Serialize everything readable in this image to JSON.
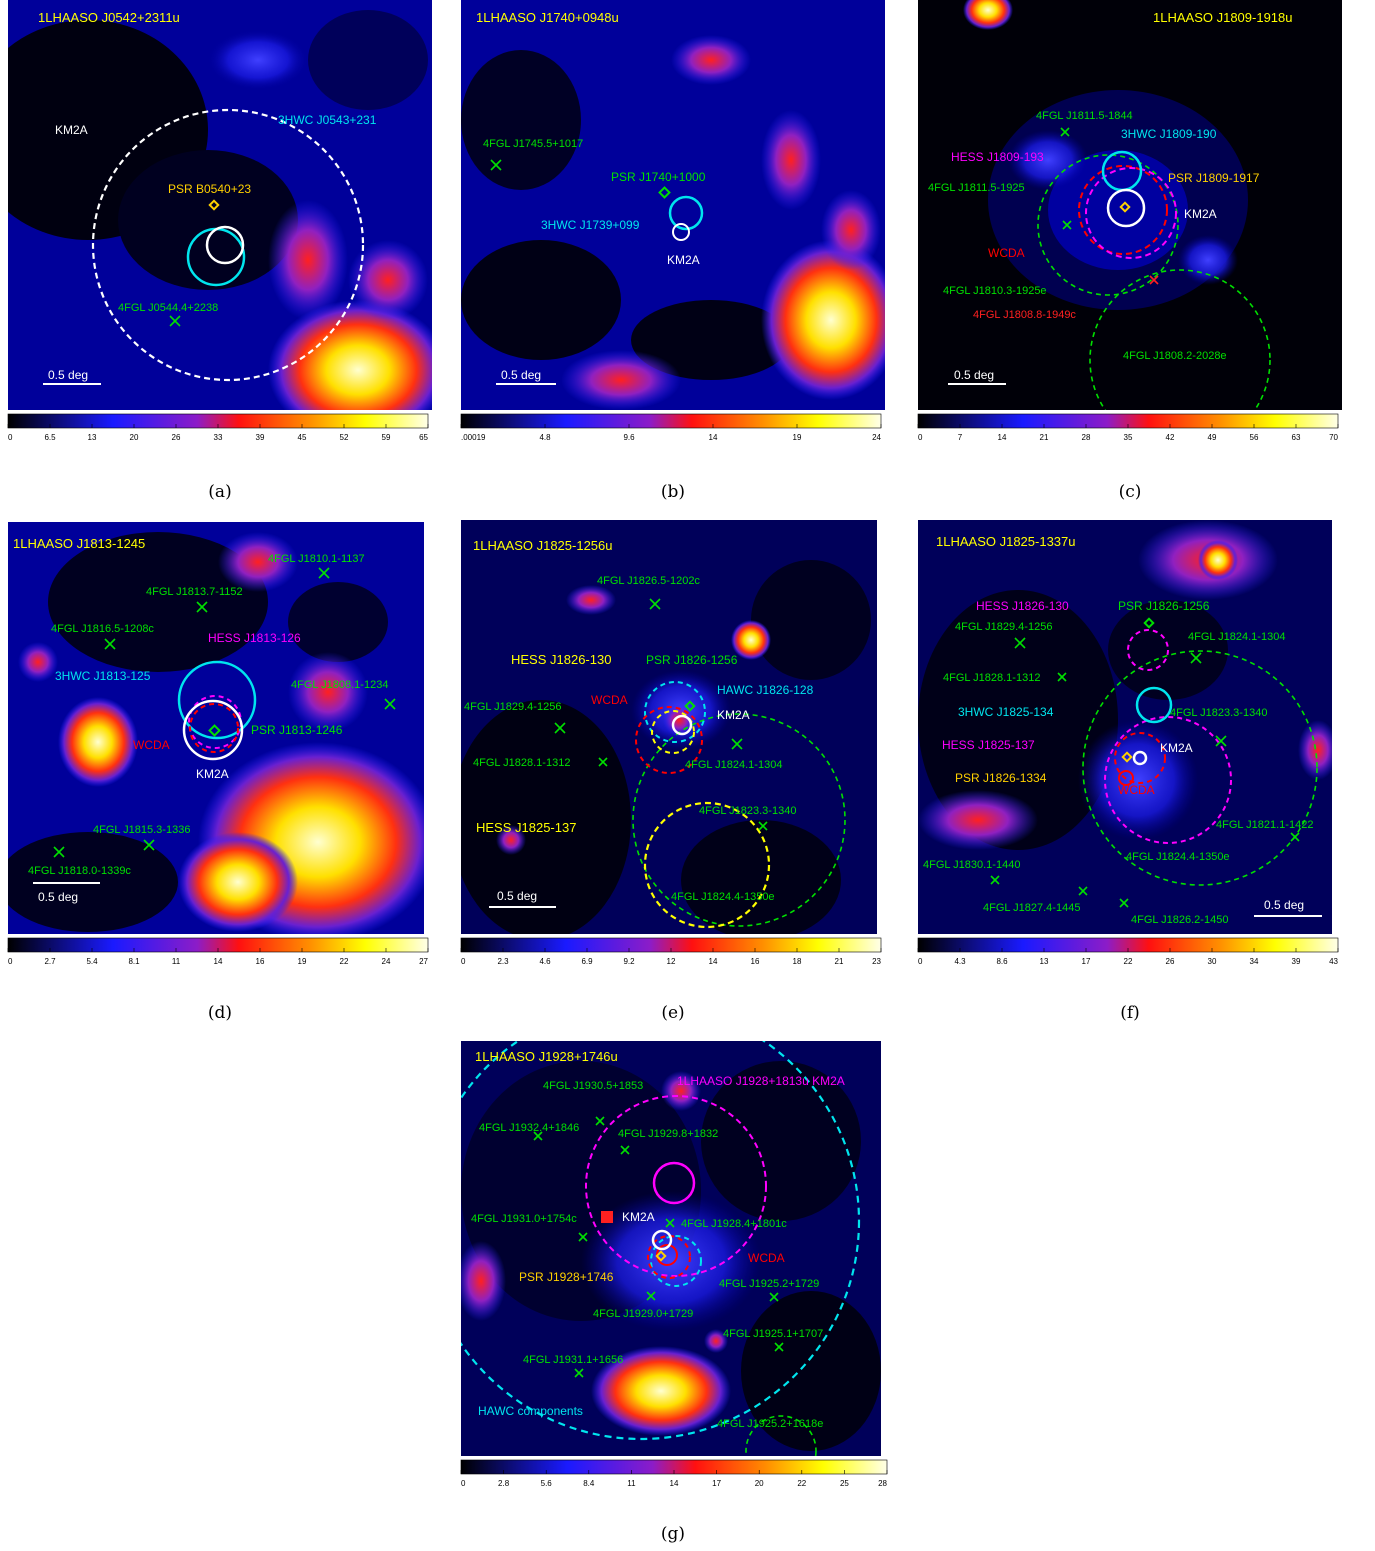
{
  "colors": {
    "sky": "#000000",
    "tevcat": "#ffff00",
    "fermi": "#00e000",
    "fermi_red": "#ff2020",
    "hawc": "#00e5ee",
    "hess": "#ff00ff",
    "wcda": "#ff0000",
    "km2a": "#ffffff",
    "pulsar": "#ffd000"
  },
  "panels": [
    {
      "key": "a",
      "caption": "(a)",
      "title": "1LHAASO J0542+2311u",
      "scale": "0.5 deg",
      "cbar_ticks": [
        "0",
        "6.5",
        "13",
        "20",
        "26",
        "33",
        "39",
        "45",
        "52",
        "59",
        "65"
      ],
      "labels": [
        {
          "text": "3HWC J0543+231",
          "color": "hawc"
        },
        {
          "text": "KM2A",
          "color": "km2a"
        },
        {
          "text": "PSR B0540+23",
          "color": "pulsar"
        },
        {
          "text": "4FGL J0544.4+2238",
          "color": "fermi"
        }
      ]
    },
    {
      "key": "b",
      "caption": "(b)",
      "title": "1LHAASO J1740+0948u",
      "scale": "0.5 deg",
      "cbar_ticks": [
        ".00019",
        "4.8",
        "9.6",
        "14",
        "19",
        "24"
      ],
      "labels": [
        {
          "text": "4FGL J1745.5+1017",
          "color": "fermi"
        },
        {
          "text": "PSR J1740+1000",
          "color": "fermi"
        },
        {
          "text": "3HWC J1739+099",
          "color": "hawc"
        },
        {
          "text": "KM2A",
          "color": "km2a"
        }
      ]
    },
    {
      "key": "c",
      "caption": "(c)",
      "title": "1LHAASO J1809-1918u",
      "scale": "0.5 deg",
      "cbar_ticks": [
        "0",
        "7",
        "14",
        "21",
        "28",
        "35",
        "42",
        "49",
        "56",
        "63",
        "70"
      ],
      "labels": [
        {
          "text": "4FGL J1811.5-1844",
          "color": "fermi"
        },
        {
          "text": "3HWC J1809-190",
          "color": "hawc"
        },
        {
          "text": "HESS J1809-193",
          "color": "hess"
        },
        {
          "text": "4FGL J1811.5-1925",
          "color": "fermi"
        },
        {
          "text": "PSR J1809-1917",
          "color": "pulsar"
        },
        {
          "text": "KM2A",
          "color": "km2a"
        },
        {
          "text": "WCDA",
          "color": "wcda"
        },
        {
          "text": "4FGL J1810.3-1925e",
          "color": "fermi"
        },
        {
          "text": "4FGL J1808.8-1949c",
          "color": "fermi_red"
        },
        {
          "text": "4FGL J1808.2-2028e",
          "color": "fermi"
        }
      ]
    },
    {
      "key": "d",
      "caption": "(d)",
      "title": "1LHAASO J1813-1245",
      "scale": "0.5 deg",
      "cbar_ticks": [
        "0",
        "2.7",
        "5.4",
        "8.1",
        "11",
        "14",
        "16",
        "19",
        "22",
        "24",
        "27"
      ],
      "labels": [
        {
          "text": "4FGL J1810.1-1137",
          "color": "fermi"
        },
        {
          "text": "4FGL J1813.7-1152",
          "color": "fermi"
        },
        {
          "text": "4FGL J1816.5-1208c",
          "color": "fermi"
        },
        {
          "text": "HESS J1813-126",
          "color": "hess"
        },
        {
          "text": "4FGL J1808.1-1234",
          "color": "fermi"
        },
        {
          "text": "3HWC J1813-125",
          "color": "hawc"
        },
        {
          "text": "PSR J1813-1246",
          "color": "fermi"
        },
        {
          "text": "WCDA",
          "color": "wcda"
        },
        {
          "text": "KM2A",
          "color": "km2a"
        },
        {
          "text": "4FGL J1815.3-1336",
          "color": "fermi"
        },
        {
          "text": "4FGL J1818.0-1339c",
          "color": "fermi"
        }
      ]
    },
    {
      "key": "e",
      "caption": "(e)",
      "title": "1LHAASO J1825-1256u",
      "scale": "0.5 deg",
      "cbar_ticks": [
        "0",
        "2.3",
        "4.6",
        "6.9",
        "9.2",
        "12",
        "14",
        "16",
        "18",
        "21",
        "23"
      ],
      "labels": [
        {
          "text": "4FGL J1826.5-1202c",
          "color": "fermi"
        },
        {
          "text": "HESS J1826-130",
          "color": "tevcat"
        },
        {
          "text": "PSR J1826-1256",
          "color": "fermi"
        },
        {
          "text": "WCDA",
          "color": "wcda"
        },
        {
          "text": "HAWC J1826-128",
          "color": "hawc"
        },
        {
          "text": "4FGL J1829.4-1256",
          "color": "fermi"
        },
        {
          "text": "KM2A",
          "color": "km2a"
        },
        {
          "text": "4FGL J1828.1-1312",
          "color": "fermi"
        },
        {
          "text": "4FGL J1824.1-1304",
          "color": "fermi"
        },
        {
          "text": "4FGL J1823.3-1340",
          "color": "fermi"
        },
        {
          "text": "HESS J1825-137",
          "color": "tevcat"
        },
        {
          "text": "4FGL J1824.4-1350e",
          "color": "fermi"
        }
      ]
    },
    {
      "key": "f",
      "caption": "(f)",
      "title": "1LHAASO J1825-1337u",
      "scale": "0.5 deg",
      "cbar_ticks": [
        "0",
        "4.3",
        "8.6",
        "13",
        "17",
        "22",
        "26",
        "30",
        "34",
        "39",
        "43"
      ],
      "labels": [
        {
          "text": "HESS J1826-130",
          "color": "hess"
        },
        {
          "text": "PSR J1826-1256",
          "color": "fermi"
        },
        {
          "text": "4FGL J1829.4-1256",
          "color": "fermi"
        },
        {
          "text": "4FGL J1824.1-1304",
          "color": "fermi"
        },
        {
          "text": "4FGL J1828.1-1312",
          "color": "fermi"
        },
        {
          "text": "3HWC J1825-134",
          "color": "hawc"
        },
        {
          "text": "4FGL J1823.3-1340",
          "color": "fermi"
        },
        {
          "text": "HESS J1825-137",
          "color": "hess"
        },
        {
          "text": "KM2A",
          "color": "km2a"
        },
        {
          "text": "PSR J1826-1334",
          "color": "pulsar"
        },
        {
          "text": "WCDA",
          "color": "wcda"
        },
        {
          "text": "4FGL J1821.1-1422",
          "color": "fermi"
        },
        {
          "text": "4FGL J1824.4-1350e",
          "color": "fermi"
        },
        {
          "text": "4FGL J1830.1-1440",
          "color": "fermi"
        },
        {
          "text": "4FGL J1827.4-1445",
          "color": "fermi"
        },
        {
          "text": "4FGL J1826.2-1450",
          "color": "fermi"
        }
      ]
    },
    {
      "key": "g",
      "caption": "(g)",
      "title": "1LHAASO J1928+1746u",
      "scale": "",
      "cbar_ticks": [
        "0",
        "2.8",
        "5.6",
        "8.4",
        "11",
        "14",
        "17",
        "20",
        "22",
        "25",
        "28"
      ],
      "labels": [
        {
          "text": "4FGL J1930.5+1853",
          "color": "fermi"
        },
        {
          "text": "1LHAASO J1928+1813u KM2A",
          "color": "hess"
        },
        {
          "text": "4FGL J1932.4+1846",
          "color": "fermi"
        },
        {
          "text": "4FGL J1929.8+1832",
          "color": "fermi"
        },
        {
          "text": "KM2A",
          "color": "km2a"
        },
        {
          "text": "4FGL J1928.4+1801c",
          "color": "fermi"
        },
        {
          "text": "4FGL J1931.0+1754c",
          "color": "fermi"
        },
        {
          "text": "WCDA",
          "color": "wcda"
        },
        {
          "text": "PSR J1928+1746",
          "color": "pulsar"
        },
        {
          "text": "4FGL J1925.2+1729",
          "color": "fermi"
        },
        {
          "text": "4FGL J1929.0+1729",
          "color": "fermi"
        },
        {
          "text": "4FGL J1925.1+1707",
          "color": "fermi"
        },
        {
          "text": "4FGL J1931.1+1656",
          "color": "fermi"
        },
        {
          "text": "HAWC components",
          "color": "hawc"
        },
        {
          "text": "4FGL J1925.2+1618e",
          "color": "fermi"
        }
      ]
    }
  ]
}
